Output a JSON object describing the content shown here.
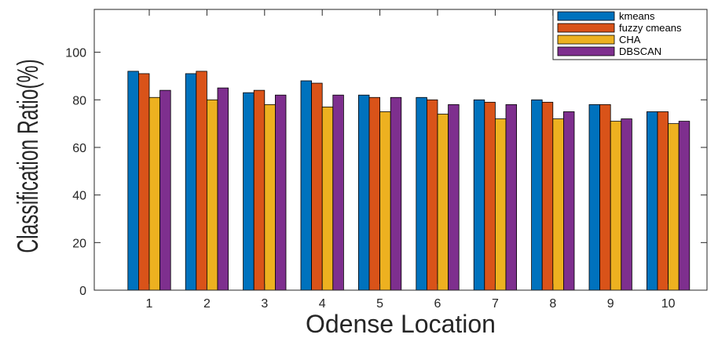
{
  "chart_data": {
    "type": "bar",
    "title": "",
    "xlabel": "Odense Location",
    "ylabel": "Classification Ratio(%)",
    "categories": [
      "1",
      "2",
      "3",
      "4",
      "5",
      "6",
      "7",
      "8",
      "9",
      "10"
    ],
    "ylim": [
      0,
      118
    ],
    "yticks": [
      0,
      20,
      40,
      60,
      80,
      100
    ],
    "grid": false,
    "legend_position": "top-right",
    "series": [
      {
        "name": "kmeans",
        "color": "#0072BD",
        "values": [
          92,
          91,
          83,
          88,
          82,
          81,
          80,
          80,
          78,
          75
        ]
      },
      {
        "name": "fuzzy cmeans",
        "color": "#D95319",
        "values": [
          91,
          92,
          84,
          87,
          81,
          80,
          79,
          79,
          78,
          75
        ]
      },
      {
        "name": "CHA",
        "color": "#EDB120",
        "values": [
          81,
          80,
          78,
          77,
          75,
          74,
          72,
          72,
          71,
          70
        ]
      },
      {
        "name": "DBSCAN",
        "color": "#7E2F8E",
        "values": [
          84,
          85,
          82,
          82,
          81,
          78,
          78,
          75,
          72,
          71
        ]
      }
    ]
  }
}
